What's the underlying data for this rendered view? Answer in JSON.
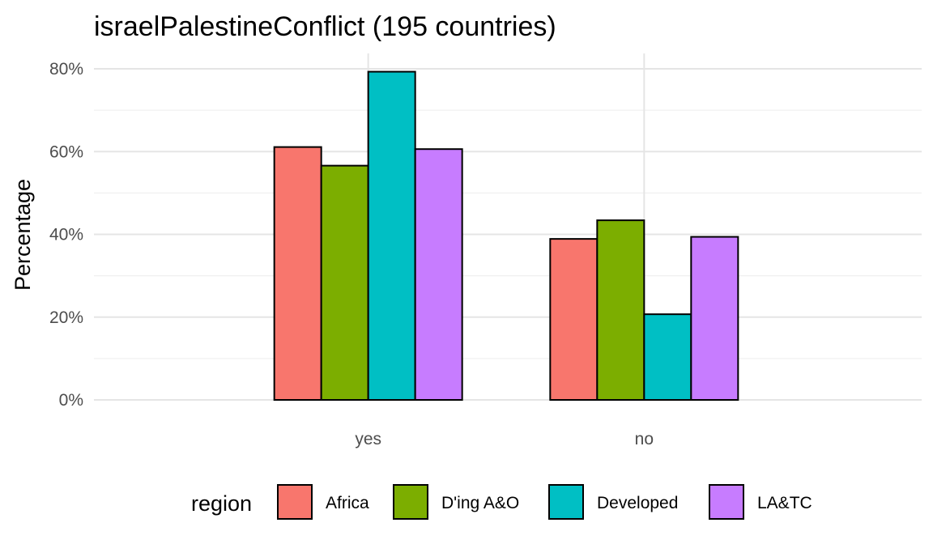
{
  "chart_data": {
    "type": "bar",
    "title": "israelPalestineConflict (195 countries)",
    "xlabel": "",
    "ylabel": "Percentage",
    "categories": [
      "yes",
      "no"
    ],
    "series": [
      {
        "name": "Africa",
        "values": [
          61.1,
          38.9
        ],
        "color": "#F8766D"
      },
      {
        "name": "D'ing A&O",
        "values": [
          56.6,
          43.4
        ],
        "color": "#7CAE00"
      },
      {
        "name": "Developed",
        "values": [
          79.3,
          20.7
        ],
        "color": "#00BFC4"
      },
      {
        "name": "LA&TC",
        "values": [
          60.6,
          39.4
        ],
        "color": "#C77CFF"
      }
    ],
    "ylim": [
      0,
      80
    ],
    "yticks": [
      0,
      20,
      40,
      60,
      80
    ],
    "ytick_labels": [
      "0%",
      "20%",
      "40%",
      "60%",
      "80%"
    ],
    "grid": true,
    "legend_title": "region",
    "legend_position": "bottom"
  }
}
